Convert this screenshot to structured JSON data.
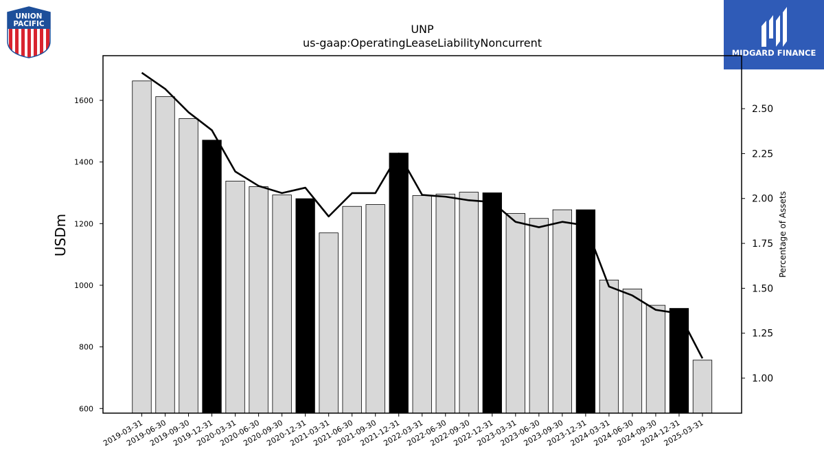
{
  "logos": {
    "company": {
      "line1": "UNION",
      "line2": "PACIFIC",
      "icon": "union-pacific-shield-logo"
    },
    "publisher": {
      "text": "MIDGARD FINANCE",
      "icon": "midgard-finance-logo",
      "color": "#2f5bb7"
    }
  },
  "colors": {
    "bar_regular": "#d8d8d8",
    "bar_year_end": "#000000",
    "line": "#000000"
  },
  "chart_data": {
    "type": "bar",
    "title": "UNP",
    "subtitle": "us-gaap:OperatingLeaseLiabilityNoncurrent",
    "ylabel": "USDm",
    "y2label": "Percentage of Assets",
    "ylim": [
      585,
      1745
    ],
    "y2lim": [
      0.805,
      2.795
    ],
    "yticks": [
      "600",
      "800",
      "1000",
      "1200",
      "1400",
      "1600"
    ],
    "y2ticks": [
      "1.00",
      "1.25",
      "1.50",
      "1.75",
      "2.00",
      "2.25",
      "2.50"
    ],
    "categories": [
      "2019-03-31",
      "2019-06-30",
      "2019-09-30",
      "2019-12-31",
      "2020-03-31",
      "2020-06-30",
      "2020-09-30",
      "2020-12-31",
      "2021-03-31",
      "2021-06-30",
      "2021-09-30",
      "2021-12-31",
      "2022-03-31",
      "2022-06-30",
      "2022-09-30",
      "2022-12-31",
      "2023-03-31",
      "2023-06-30",
      "2023-09-30",
      "2023-12-31",
      "2024-03-31",
      "2024-06-30",
      "2024-09-30",
      "2024-12-31",
      "2025-03-31"
    ],
    "year_end": [
      false,
      false,
      false,
      true,
      false,
      false,
      false,
      true,
      false,
      false,
      false,
      true,
      false,
      false,
      false,
      true,
      false,
      false,
      false,
      true,
      false,
      false,
      false,
      true,
      false
    ],
    "series": [
      {
        "values": [
          1663,
          1612,
          1541,
          1471,
          1338,
          1320,
          1293,
          1281,
          1170,
          1256,
          1262,
          1429,
          1291,
          1296,
          1302,
          1300,
          1233,
          1217,
          1245,
          1245,
          1017,
          988,
          935,
          925,
          757
        ]
      },
      {
        "axis": "right",
        "values": [
          2.7,
          2.61,
          2.48,
          2.38,
          2.15,
          2.07,
          2.03,
          2.06,
          1.9,
          2.03,
          2.03,
          2.25,
          2.02,
          2.01,
          1.99,
          1.98,
          1.87,
          1.84,
          1.87,
          1.85,
          1.51,
          1.46,
          1.38,
          1.36,
          1.11
        ]
      }
    ],
    "grid": false,
    "legend": "none"
  }
}
